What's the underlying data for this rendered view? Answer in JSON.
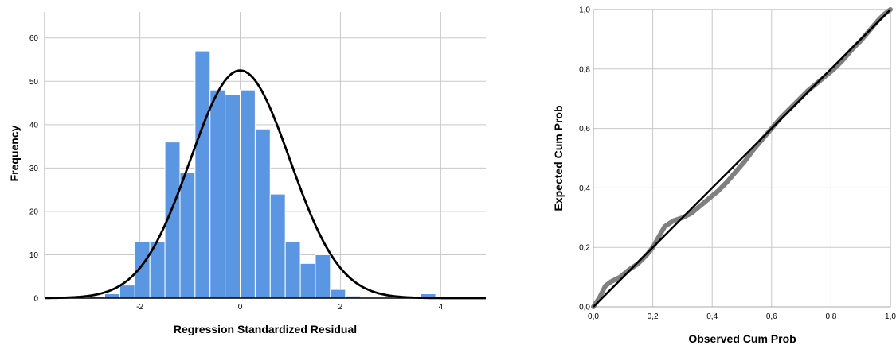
{
  "chart_data": [
    {
      "type": "bar",
      "xlabel": "Regression Standardized Residual",
      "ylabel": "Frequency",
      "xlim": [
        -3.9,
        4.9
      ],
      "ylim": [
        0,
        66
      ],
      "x_ticks": [
        -2,
        0,
        2,
        4
      ],
      "x_tick_labels": [
        "-2",
        "0",
        "2",
        "4"
      ],
      "y_ticks": [
        0,
        10,
        20,
        30,
        40,
        50,
        60
      ],
      "y_tick_labels": [
        "0",
        "10",
        "20",
        "30",
        "40",
        "50",
        "60"
      ],
      "bin_width": 0.3,
      "bins": [
        {
          "x0": -3.0,
          "count": 0.3
        },
        {
          "x0": -2.7,
          "count": 1
        },
        {
          "x0": -2.4,
          "count": 3
        },
        {
          "x0": -2.1,
          "count": 13
        },
        {
          "x0": -1.8,
          "count": 13
        },
        {
          "x0": -1.5,
          "count": 36
        },
        {
          "x0": -1.2,
          "count": 29
        },
        {
          "x0": -0.9,
          "count": 57
        },
        {
          "x0": -0.6,
          "count": 48
        },
        {
          "x0": -0.3,
          "count": 47
        },
        {
          "x0": 0.0,
          "count": 48
        },
        {
          "x0": 0.3,
          "count": 39
        },
        {
          "x0": 0.6,
          "count": 24
        },
        {
          "x0": 0.9,
          "count": 13
        },
        {
          "x0": 1.2,
          "count": 8
        },
        {
          "x0": 1.5,
          "count": 10
        },
        {
          "x0": 1.8,
          "count": 2
        },
        {
          "x0": 2.1,
          "count": 0.5
        },
        {
          "x0": 3.6,
          "count": 1
        }
      ],
      "normal_curve": {
        "mean": 0,
        "sd": 0.995,
        "peak": 52.5
      },
      "bar_color": "#5a96e2",
      "bar_edge_color": "#ffffff",
      "curve_color": "#000000",
      "grid": true
    },
    {
      "type": "line",
      "xlabel": "Observed Cum Prob",
      "ylabel": "Expected Cum Prob",
      "xlim": [
        0,
        1
      ],
      "ylim": [
        0,
        1
      ],
      "ticks": [
        0,
        0.2,
        0.4,
        0.6,
        0.8,
        1.0
      ],
      "x_tick_labels": [
        "0,0",
        "0,2",
        "0,4",
        "0,6",
        "0,8",
        "1,0"
      ],
      "y_tick_labels": [
        "0,0",
        "0,2",
        "0,4",
        "0,6",
        "0,8",
        "1,0"
      ],
      "reference_line": [
        [
          0,
          0
        ],
        [
          1,
          1
        ]
      ],
      "observed_series": [
        [
          0.0,
          0.0
        ],
        [
          0.02,
          0.03
        ],
        [
          0.04,
          0.07
        ],
        [
          0.06,
          0.085
        ],
        [
          0.09,
          0.1
        ],
        [
          0.12,
          0.125
        ],
        [
          0.15,
          0.145
        ],
        [
          0.18,
          0.175
        ],
        [
          0.2,
          0.2
        ],
        [
          0.22,
          0.235
        ],
        [
          0.24,
          0.27
        ],
        [
          0.27,
          0.29
        ],
        [
          0.3,
          0.3
        ],
        [
          0.33,
          0.315
        ],
        [
          0.36,
          0.34
        ],
        [
          0.39,
          0.365
        ],
        [
          0.42,
          0.39
        ],
        [
          0.45,
          0.42
        ],
        [
          0.48,
          0.455
        ],
        [
          0.51,
          0.49
        ],
        [
          0.54,
          0.53
        ],
        [
          0.57,
          0.565
        ],
        [
          0.6,
          0.6
        ],
        [
          0.63,
          0.635
        ],
        [
          0.66,
          0.665
        ],
        [
          0.69,
          0.695
        ],
        [
          0.72,
          0.725
        ],
        [
          0.75,
          0.75
        ],
        [
          0.78,
          0.775
        ],
        [
          0.81,
          0.8
        ],
        [
          0.84,
          0.83
        ],
        [
          0.87,
          0.865
        ],
        [
          0.9,
          0.895
        ],
        [
          0.93,
          0.93
        ],
        [
          0.96,
          0.965
        ],
        [
          0.98,
          0.985
        ],
        [
          1.0,
          1.0
        ]
      ],
      "series_color": "#808080",
      "line_color": "#000000",
      "grid": true
    }
  ]
}
